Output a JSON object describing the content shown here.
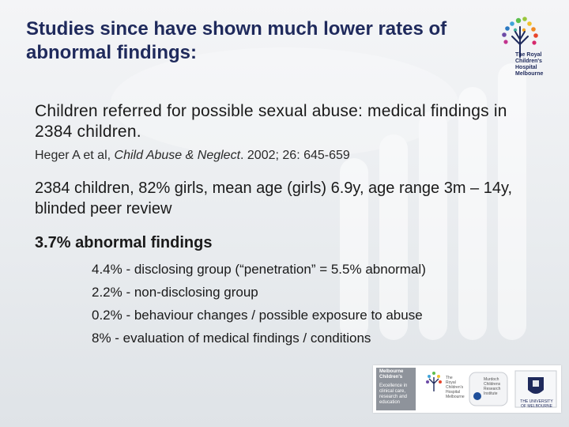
{
  "title": "Studies since have shown much lower rates of abnormal findings:",
  "logo": {
    "text": "The Royal Children's Hospital Melbourne"
  },
  "content": {
    "p1": "Children referred for possible sexual abuse: medical findings in 2384 children.",
    "ref": {
      "authors": "Heger A et al,",
      "journal": "Child Abuse & Neglect",
      "rest": ". 2002; 26: 645-659"
    },
    "p2": "2384 children, 82% girls, mean age (girls) 6.9y, age range 3m – 14y, blinded peer review",
    "p3": "3.7% abnormal findings",
    "items": [
      "4.4% - disclosing group (“penetration” = 5.5% abnormal)",
      "2.2% - non-disclosing group",
      "0.2% - behaviour changes / possible exposure to abuse",
      "8% - evaluation of medical findings / conditions"
    ]
  },
  "partners": {
    "mcri_head": "Melbourne Children's",
    "mcri_body": "Excellence in clinical care, research and education",
    "rch": "The Royal Children's Hospital Melbourne",
    "murdoch": "Murdoch Childrens Research Institute",
    "uom": "THE UNIVERSITY OF MELBOURNE"
  },
  "colors": {
    "title": "#1f2a5c",
    "text": "#1a1a1a",
    "background": "#eceef1"
  }
}
